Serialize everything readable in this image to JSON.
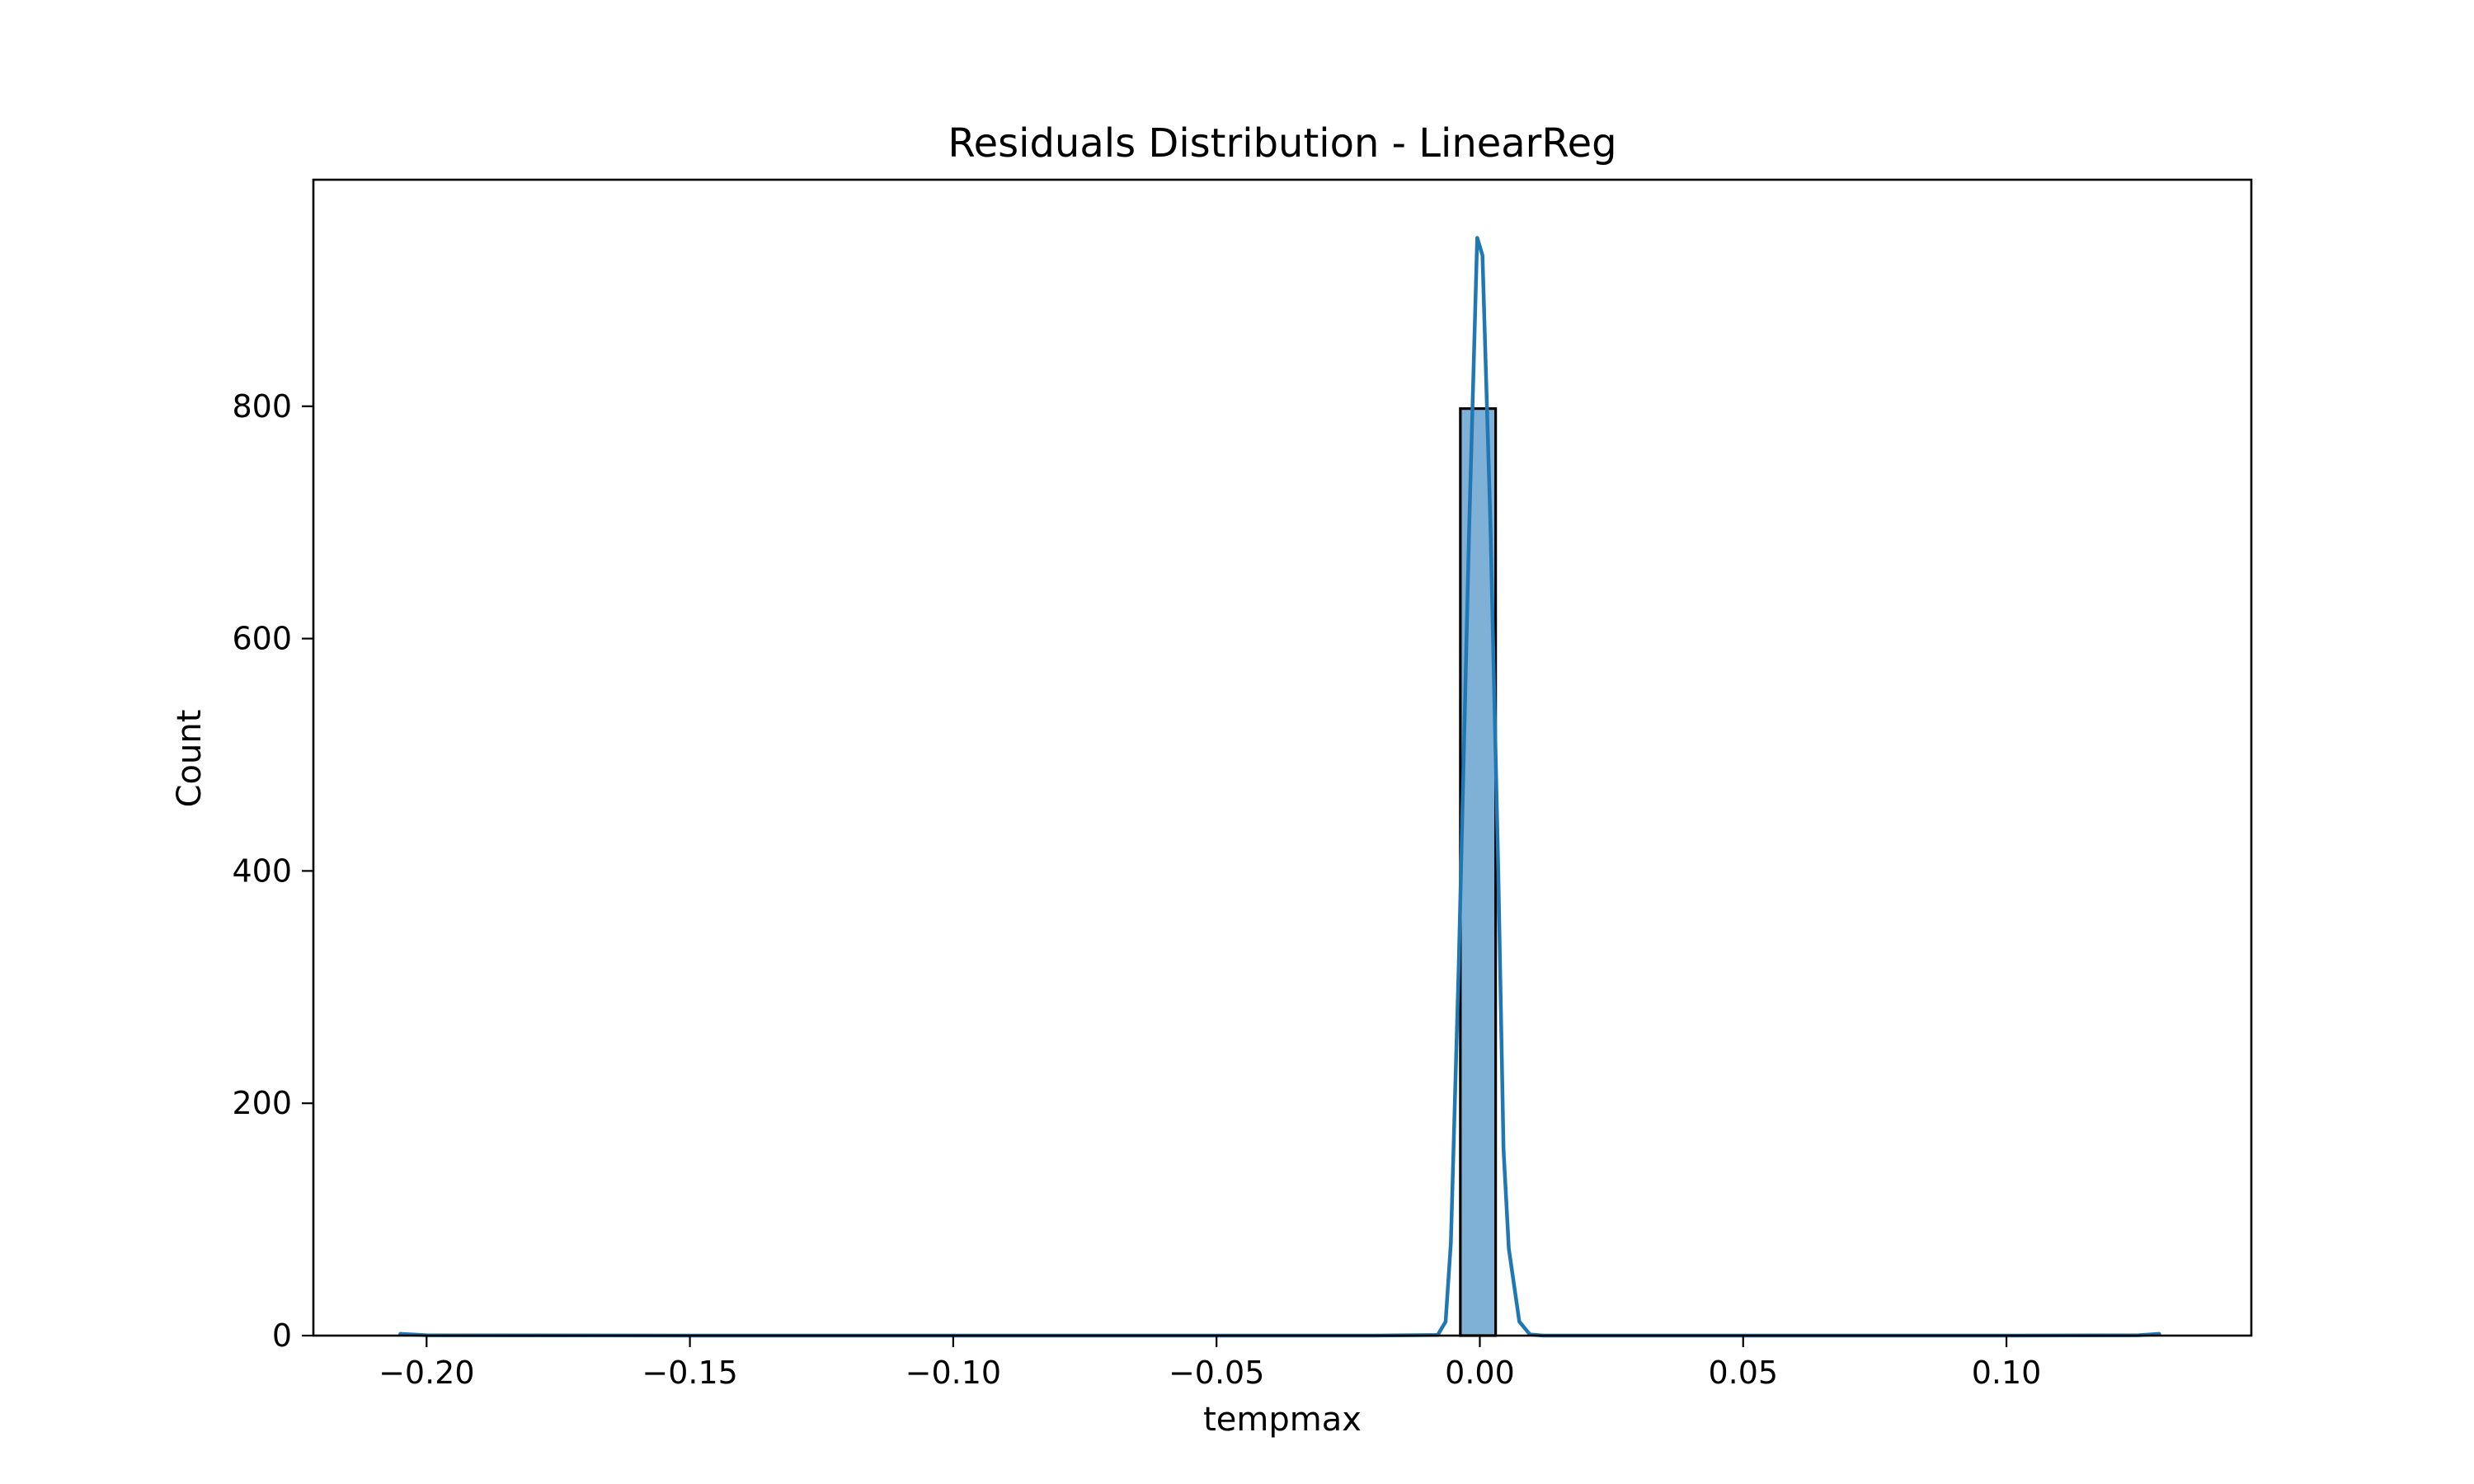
{
  "chart_data": {
    "type": "bar",
    "title": "Residuals Distribution - LinearReg",
    "xlabel": "tempmax",
    "ylabel": "Count",
    "xlim": [
      -0.2215,
      0.1465
    ],
    "ylim": [
      0,
      995
    ],
    "x_ticks": [
      {
        "value": -0.2,
        "label": "−0.20"
      },
      {
        "value": -0.15,
        "label": "−0.15"
      },
      {
        "value": -0.1,
        "label": "−0.10"
      },
      {
        "value": -0.05,
        "label": "−0.05"
      },
      {
        "value": 0.0,
        "label": "0.00"
      },
      {
        "value": 0.05,
        "label": "0.05"
      },
      {
        "value": 0.1,
        "label": "0.10"
      }
    ],
    "y_ticks": [
      {
        "value": 0,
        "label": "0"
      },
      {
        "value": 200,
        "label": "200"
      },
      {
        "value": 400,
        "label": "400"
      },
      {
        "value": 600,
        "label": "600"
      },
      {
        "value": 800,
        "label": "800"
      }
    ],
    "bars": [
      {
        "x_start": -0.0037,
        "x_end": 0.003,
        "value": 798
      }
    ],
    "kde": [
      [
        -0.205,
        1.5
      ],
      [
        -0.2,
        0.3
      ],
      [
        -0.15,
        0
      ],
      [
        -0.1,
        0
      ],
      [
        -0.05,
        0
      ],
      [
        -0.02,
        0
      ],
      [
        -0.008,
        0.5
      ],
      [
        -0.0065,
        12
      ],
      [
        -0.0055,
        80
      ],
      [
        -0.004,
        320
      ],
      [
        -0.002,
        700
      ],
      [
        -0.0005,
        945
      ],
      [
        0.0005,
        930
      ],
      [
        0.002,
        700
      ],
      [
        0.0035,
        400
      ],
      [
        0.0045,
        160
      ],
      [
        0.0055,
        75
      ],
      [
        0.0075,
        12
      ],
      [
        0.0095,
        1
      ],
      [
        0.012,
        0
      ],
      [
        0.05,
        0
      ],
      [
        0.1,
        0
      ],
      [
        0.125,
        0.3
      ],
      [
        0.129,
        1.5
      ]
    ],
    "colors": {
      "bar_fill": "#7fb0d5",
      "line": "#1f77b4"
    },
    "grid": false,
    "legend": "none"
  }
}
